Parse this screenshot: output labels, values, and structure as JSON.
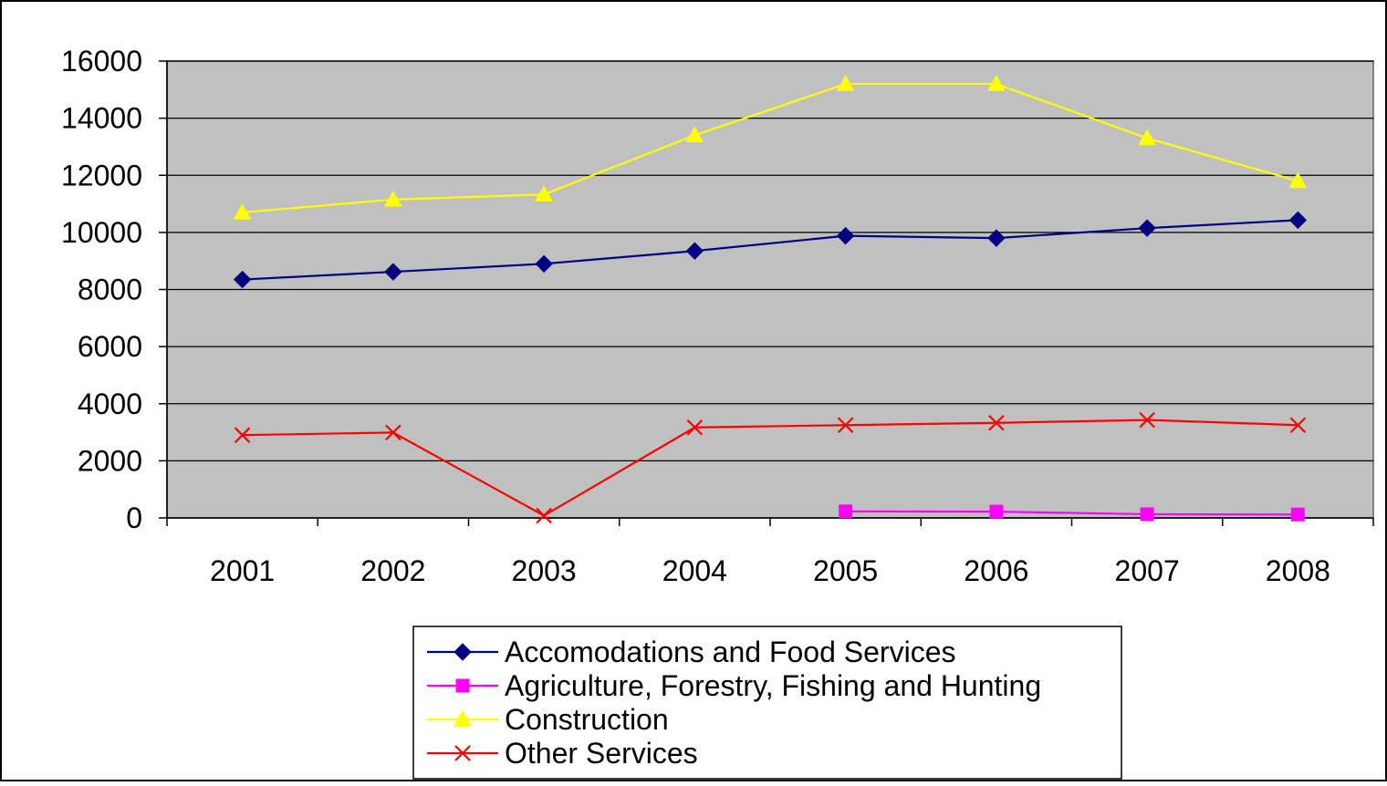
{
  "chart_data": {
    "type": "line",
    "title": "",
    "xlabel": "",
    "ylabel": "",
    "categories": [
      "2001",
      "2002",
      "2003",
      "2004",
      "2005",
      "2006",
      "2007",
      "2008"
    ],
    "ylim": [
      0,
      16000
    ],
    "yticks": [
      0,
      2000,
      4000,
      6000,
      8000,
      10000,
      12000,
      14000,
      16000
    ],
    "grid": "horizontal",
    "legend_position": "bottom",
    "plot_background": "#c0c0c0",
    "series": [
      {
        "name": "Accomodations and Food Services",
        "color": "#000080",
        "marker": "diamond",
        "values": [
          8350,
          8620,
          8900,
          9350,
          9880,
          9800,
          10150,
          10430
        ]
      },
      {
        "name": "Agriculture, Forestry, Fishing and Hunting",
        "color": "#ff00ff",
        "marker": "square",
        "values": [
          null,
          null,
          null,
          null,
          230,
          220,
          130,
          120
        ]
      },
      {
        "name": "Construction",
        "color": "#ffff00",
        "marker": "triangle",
        "values": [
          10700,
          11150,
          11330,
          13400,
          15200,
          15200,
          13300,
          11800
        ]
      },
      {
        "name": "Other Services",
        "color": "#ff0000",
        "marker": "x",
        "values": [
          2900,
          2990,
          80,
          3170,
          3250,
          3330,
          3430,
          3250
        ]
      }
    ]
  }
}
